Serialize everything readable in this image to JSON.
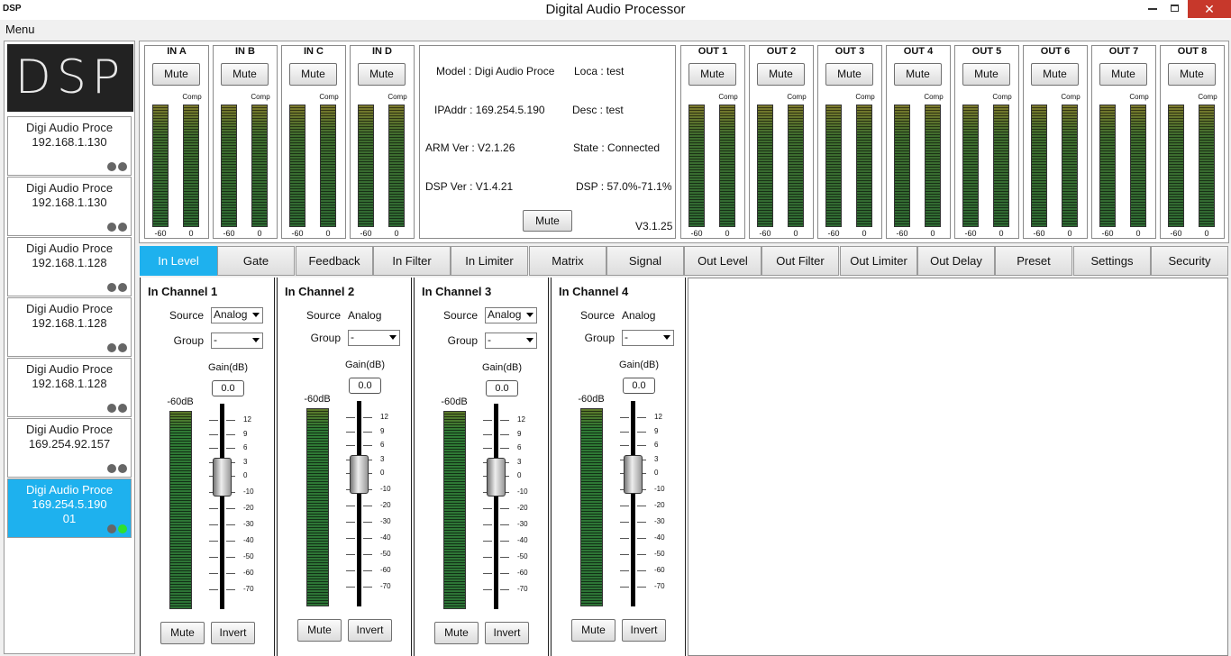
{
  "window": {
    "icon": "DSP",
    "title": "Digital Audio Processor"
  },
  "menu": "Menu",
  "logo": "DSP",
  "devices": [
    {
      "name": "Digi Audio Proce",
      "ip": "192.168.1.130"
    },
    {
      "name": "Digi Audio Proce",
      "ip": "192.168.1.130"
    },
    {
      "name": "Digi Audio Proce",
      "ip": "192.168.1.128"
    },
    {
      "name": "Digi Audio Proce",
      "ip": "192.168.1.128"
    },
    {
      "name": "Digi Audio Proce",
      "ip": "192.168.1.128"
    },
    {
      "name": "Digi Audio Proce",
      "ip": "169.254.92.157"
    },
    {
      "name": "Digi Audio Proce",
      "ip": "169.254.5.190",
      "id": "01"
    }
  ],
  "selected_device": 6,
  "meter_labels": {
    "mute": "Mute",
    "comp": "Comp",
    "min": "-60",
    "max": "0"
  },
  "inputs": [
    "IN A",
    "IN B",
    "IN C",
    "IN D"
  ],
  "outputs": [
    "OUT 1",
    "OUT 2",
    "OUT 3",
    "OUT 4",
    "OUT 5",
    "OUT 6",
    "OUT 7",
    "OUT 8"
  ],
  "info": {
    "model": "Model : Digi Audio Proce",
    "loca": "Loca : test",
    "ip": "IPAddr : 169.254.5.190",
    "desc": "Desc : test",
    "arm": "ARM Ver : V2.1.26",
    "state": "State : Connected",
    "dsp_ver": "DSP Ver : V1.4.21",
    "dsp": "DSP : 57.0%-71.1%",
    "mute": "Mute",
    "version": "V3.1.25"
  },
  "tabs": [
    "In Level",
    "Gate",
    "Feedback",
    "In Filter",
    "In Limiter",
    "Matrix",
    "Signal",
    "Out Level",
    "Out Filter",
    "Out Limiter",
    "Out Delay",
    "Preset",
    "Settings",
    "Security"
  ],
  "active_tab": 0,
  "channel_labels": {
    "source": "Source",
    "group": "Group",
    "gain": "Gain(dB)",
    "meter": "-60dB",
    "mute": "Mute",
    "invert": "Invert"
  },
  "channels": [
    {
      "title": "In Channel 1",
      "source": "Analog",
      "source_dropdown": true,
      "group": "-",
      "gain": "0.0"
    },
    {
      "title": "In Channel 2",
      "source": "Analog",
      "source_dropdown": false,
      "group": "-",
      "gain": "0.0"
    },
    {
      "title": "In Channel 3",
      "source": "Analog",
      "source_dropdown": true,
      "group": "-",
      "gain": "0.0"
    },
    {
      "title": "In Channel 4",
      "source": "Analog",
      "source_dropdown": false,
      "group": "-",
      "gain": "0.0"
    }
  ],
  "fader_scale": [
    12,
    9,
    6,
    3,
    0,
    -10,
    -20,
    -30,
    -40,
    -50,
    -60,
    -70
  ]
}
